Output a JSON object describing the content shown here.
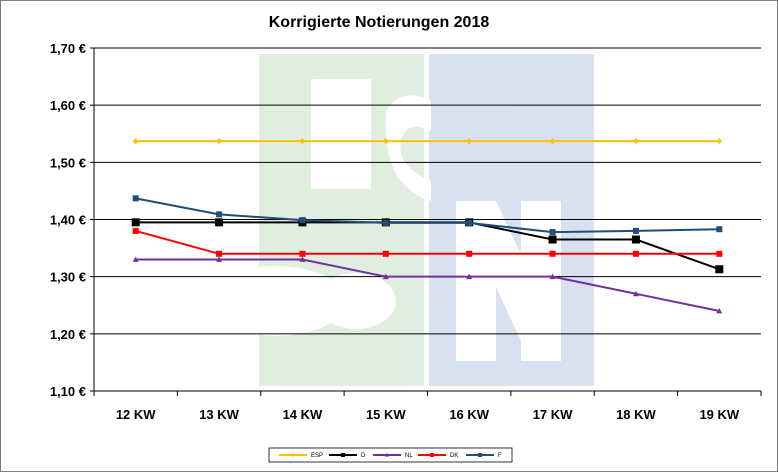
{
  "chart_data": {
    "type": "line",
    "title": "Korrigierte Notierungen 2018",
    "categories": [
      "12 KW",
      "13 KW",
      "14 KW",
      "15 KW",
      "16 KW",
      "17 KW",
      "18 KW",
      "19 KW"
    ],
    "y_ticks": [
      "1,10 €",
      "1,20 €",
      "1,30 €",
      "1,40 €",
      "1,50 €",
      "1,60 €",
      "1,70 €"
    ],
    "ylim": [
      1.1,
      1.7
    ],
    "grid": true,
    "legend_position": "bottom",
    "series": [
      {
        "name": "ESP",
        "color": "#ffc000",
        "marker": "diamond",
        "values": [
          1.537,
          1.537,
          1.537,
          1.537,
          1.537,
          1.537,
          1.537,
          1.537
        ]
      },
      {
        "name": "D",
        "color": "#000000",
        "marker": "square",
        "values": [
          1.395,
          1.395,
          1.395,
          1.395,
          1.395,
          1.365,
          1.365,
          1.313
        ]
      },
      {
        "name": "NL",
        "color": "#7030a0",
        "marker": "triangle",
        "values": [
          1.33,
          1.33,
          1.33,
          1.3,
          1.3,
          1.3,
          1.27,
          1.24
        ]
      },
      {
        "name": "DK",
        "color": "#ff0000",
        "marker": "square",
        "values": [
          1.38,
          1.34,
          1.34,
          1.34,
          1.34,
          1.34,
          1.34,
          1.34
        ]
      },
      {
        "name": "F",
        "color": "#1f4e79",
        "marker": "square",
        "values": [
          1.437,
          1.409,
          1.399,
          1.394,
          1.394,
          1.378,
          1.38,
          1.383
        ]
      }
    ]
  },
  "watermark": {
    "text": "ISN",
    "colors": [
      "#5aa55a",
      "#2d5fa8"
    ]
  }
}
